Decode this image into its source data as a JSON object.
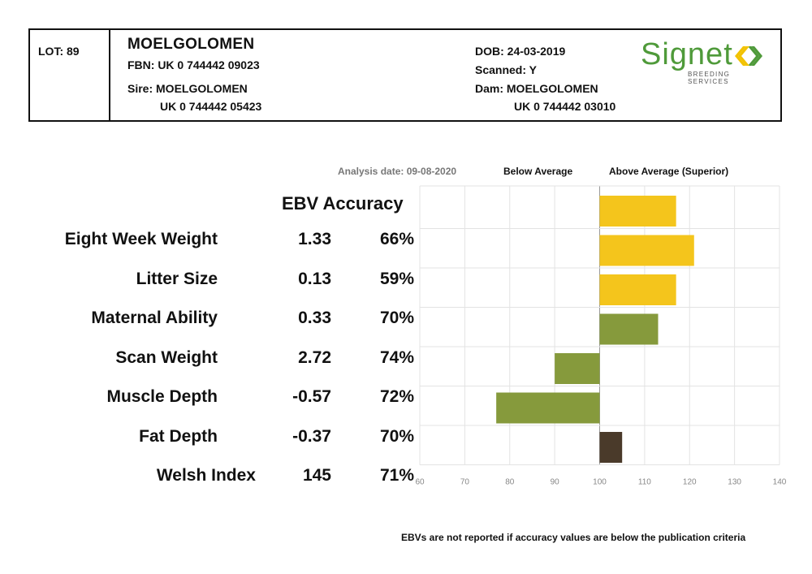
{
  "header": {
    "lot": "LOT: 89",
    "name": "MOELGOLOMEN",
    "fbn": "FBN: UK 0 744442 09023",
    "sire": "Sire: MOELGOLOMEN",
    "sire_id": "UK 0 744442 05423",
    "dob": "DOB: 24-03-2019",
    "scanned": "Scanned: Y",
    "dam": "Dam: MOELGOLOMEN",
    "dam_id": "UK 0 744442 03010"
  },
  "logo": {
    "text": "Signet",
    "subtext": "BREEDING SERVICES",
    "green": "#4f9a3a",
    "yellow": "#f2c200"
  },
  "chart_labels": {
    "analysis_date": "Analysis date: 09-08-2020",
    "below_average": "Below Average",
    "above_average": "Above Average (Superior)",
    "ebv_accuracy": "EBV Accuracy",
    "footnote": "EBVs are not reported if accuracy values are below the publication criteria"
  },
  "chart_data": {
    "type": "bar",
    "orientation": "horizontal",
    "baseline": 100,
    "xlim": [
      60,
      140
    ],
    "xticks": [
      "60",
      "70",
      "80",
      "90",
      "100",
      "110",
      "120",
      "130",
      "140"
    ],
    "grid": true,
    "rows": [
      {
        "trait": "Eight Week Weight",
        "ebv": "1.33",
        "accuracy": "66%",
        "value": 117,
        "color": "#f4c51c"
      },
      {
        "trait": "Litter Size",
        "ebv": "0.13",
        "accuracy": "59%",
        "value": 121,
        "color": "#f4c51c"
      },
      {
        "trait": "Maternal Ability",
        "ebv": "0.33",
        "accuracy": "70%",
        "value": 117,
        "color": "#f4c51c"
      },
      {
        "trait": "Scan Weight",
        "ebv": "2.72",
        "accuracy": "74%",
        "value": 113,
        "color": "#869a3c"
      },
      {
        "trait": "Muscle Depth",
        "ebv": "-0.57",
        "accuracy": "72%",
        "value": 90,
        "color": "#869a3c"
      },
      {
        "trait": "Fat Depth",
        "ebv": "-0.37",
        "accuracy": "70%",
        "value": 77,
        "color": "#869a3c"
      },
      {
        "trait": "Welsh Index",
        "ebv": "145",
        "accuracy": "71%",
        "value": 105,
        "color": "#4a3a2a"
      }
    ]
  }
}
